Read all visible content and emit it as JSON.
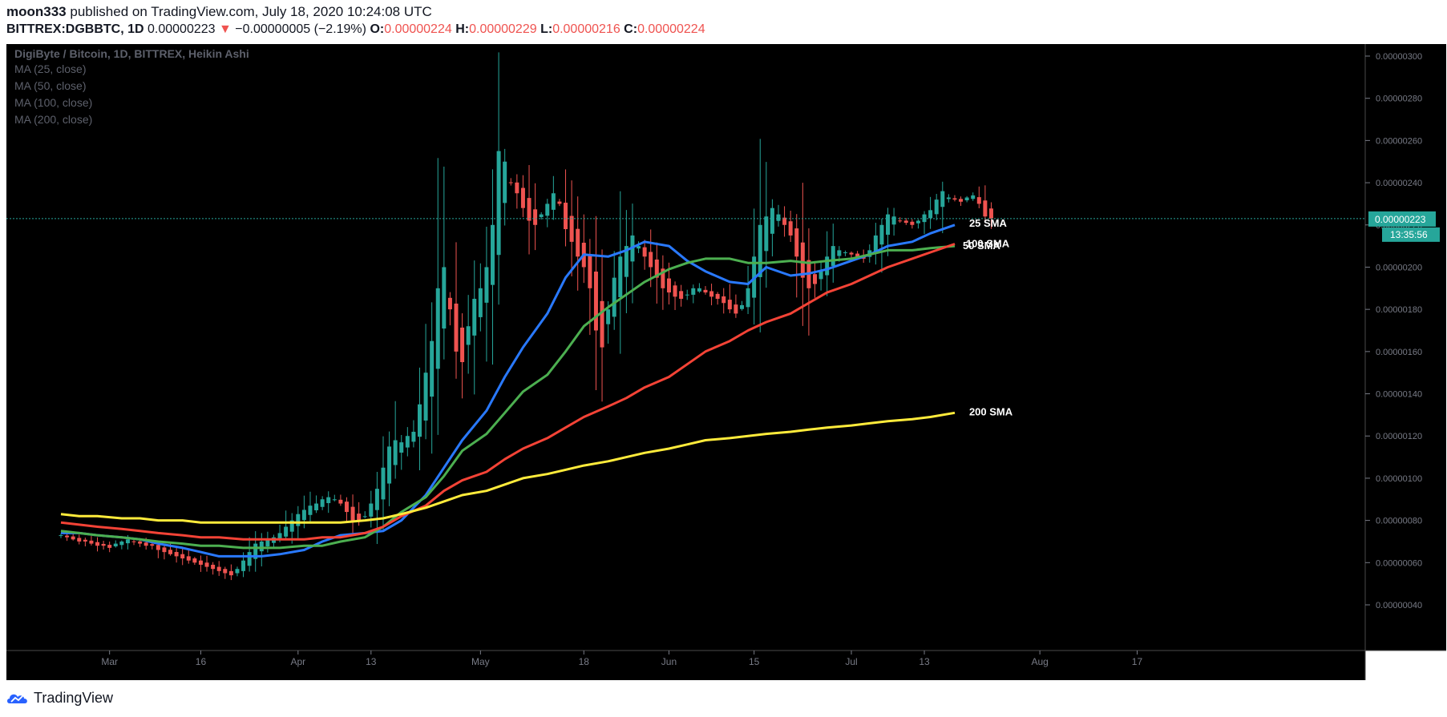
{
  "header": {
    "author": "moon333",
    "published_text": "published on TradingView.com, July 18, 2020 10:24:08 UTC",
    "symbol": "BITTREX:DGBBTC, 1D",
    "last": "0.00000223",
    "change_arrow": "▼",
    "change": "−0.00000005 (−2.19%)",
    "o_label": "O:",
    "o_value": "0.00000224",
    "h_label": "H:",
    "h_value": "0.00000229",
    "l_label": "L:",
    "l_value": "0.00000216",
    "c_label": "C:",
    "c_value": "0.00000224"
  },
  "legend": {
    "title": "DigiByte / Bitcoin, 1D, BITTREX, Heikin Ashi",
    "indicators": [
      "MA (25, close)",
      "MA (50, close)",
      "MA (100, close)",
      "MA (200, close)"
    ]
  },
  "price_badge": {
    "value": "0.00000223",
    "countdown": "13:35:56"
  },
  "footer": {
    "brand": "TradingView"
  },
  "colors": {
    "up": "#26a69a",
    "down": "#ef5350",
    "sma25": "#2979ff",
    "sma50": "#4caf50",
    "sma100": "#f44336",
    "sma200": "#ffeb3b",
    "background": "#000000",
    "badge": "#26a69a"
  },
  "chart_data": {
    "type": "candlestick",
    "subtype": "Heikin Ashi",
    "title": "DigiByte / Bitcoin, 1D, BITTREX, Heikin Ashi",
    "date_range": [
      "2020-02-22",
      "2020-07-18"
    ],
    "y_ticks": [
      "0.00000040",
      "0.00000060",
      "0.00000080",
      "0.00000100",
      "0.00000120",
      "0.00000140",
      "0.00000160",
      "0.00000180",
      "0.00000200",
      "0.00000220",
      "0.00000240",
      "0.00000260",
      "0.00000280",
      "0.00000300"
    ],
    "ylim": [
      4e-07,
      3.04e-06
    ],
    "x_ticks": [
      {
        "date": "2020-03-01",
        "label": "Mar"
      },
      {
        "date": "2020-03-16",
        "label": "16"
      },
      {
        "date": "2020-04-01",
        "label": "Apr"
      },
      {
        "date": "2020-04-13",
        "label": "13"
      },
      {
        "date": "2020-05-01",
        "label": "May"
      },
      {
        "date": "2020-05-18",
        "label": "18"
      },
      {
        "date": "2020-06-01",
        "label": "Jun"
      },
      {
        "date": "2020-06-15",
        "label": "15"
      },
      {
        "date": "2020-07-01",
        "label": "Jul"
      },
      {
        "date": "2020-07-13",
        "label": "13"
      },
      {
        "date": "2020-08-01",
        "label": "Aug"
      },
      {
        "date": "2020-08-17",
        "label": "17"
      }
    ],
    "xlim": [
      "2020-02-22",
      "2020-08-23"
    ],
    "current_price": 2.23e-06,
    "close_series": [
      0.73,
      0.72,
      0.71,
      0.7,
      0.7,
      0.69,
      0.68,
      0.68,
      0.67,
      0.69,
      0.7,
      0.71,
      0.7,
      0.69,
      0.68,
      0.68,
      0.66,
      0.65,
      0.64,
      0.63,
      0.62,
      0.61,
      0.6,
      0.59,
      0.58,
      0.57,
      0.56,
      0.55,
      0.54,
      0.57,
      0.61,
      0.65,
      0.69,
      0.7,
      0.71,
      0.72,
      0.74,
      0.77,
      0.8,
      0.83,
      0.85,
      0.87,
      0.88,
      0.9,
      0.91,
      0.9,
      0.88,
      0.84,
      0.8,
      0.8,
      0.82,
      0.88,
      0.95,
      1.05,
      1.15,
      1.18,
      1.17,
      1.2,
      1.22,
      1.35,
      1.5,
      1.65,
      1.9,
      2.0,
      1.8,
      1.6,
      1.55,
      1.72,
      1.85,
      1.9,
      2.0,
      2.2,
      2.55,
      2.5,
      2.4,
      2.35,
      2.28,
      2.22,
      2.2,
      2.25,
      2.3,
      2.35,
      2.3,
      2.18,
      2.12,
      2.05,
      2.0,
      1.9,
      1.7,
      1.62,
      1.8,
      1.95,
      2.05,
      2.1,
      2.15,
      2.1,
      2.05,
      2.0,
      1.95,
      1.9,
      1.88,
      1.86,
      1.85,
      1.87,
      1.9,
      1.9,
      1.88,
      1.86,
      1.85,
      1.83,
      1.8,
      1.78,
      1.82,
      1.9,
      2.05,
      2.2,
      2.24,
      2.28,
      2.25,
      2.2,
      2.15,
      2.05,
      1.95,
      1.9,
      1.92,
      1.98,
      2.05,
      2.1,
      2.08,
      2.07,
      2.06,
      2.05,
      2.04,
      2.08,
      2.15,
      2.2,
      2.25,
      2.24,
      2.22,
      2.21,
      2.2,
      2.22,
      2.25,
      2.27,
      2.32,
      2.36,
      2.33,
      2.32,
      2.31,
      2.33,
      2.34,
      2.3,
      2.24,
      2.23
    ],
    "close_series_units": "0.000001 BTC",
    "series": [
      {
        "name": "25 SMA",
        "values": [
          0.74,
          0.74,
          0.73,
          0.72,
          0.71,
          0.69,
          0.67,
          0.65,
          0.63,
          0.63,
          0.63,
          0.64,
          0.66,
          0.7,
          0.73,
          0.74,
          0.75,
          0.8,
          0.92,
          1.05,
          1.18,
          1.32,
          1.48,
          1.62,
          1.78,
          1.95,
          2.06,
          2.05,
          2.08,
          2.12,
          2.1,
          2.03,
          1.98,
          1.93,
          1.92,
          2.0,
          1.96,
          1.97,
          1.99,
          2.03,
          2.06,
          2.1,
          2.12,
          2.16,
          2.2
        ]
      },
      {
        "name": "50 SMA",
        "values": [
          0.75,
          0.74,
          0.73,
          0.72,
          0.71,
          0.7,
          0.69,
          0.68,
          0.68,
          0.67,
          0.67,
          0.67,
          0.68,
          0.68,
          0.7,
          0.72,
          0.77,
          0.84,
          0.91,
          1.01,
          1.13,
          1.21,
          1.31,
          1.41,
          1.49,
          1.6,
          1.72,
          1.81,
          1.87,
          1.93,
          1.99,
          2.02,
          2.04,
          2.04,
          2.02,
          2.02,
          2.03,
          2.02,
          2.03,
          2.04,
          2.06,
          2.08,
          2.08,
          2.09,
          2.1
        ]
      },
      {
        "name": "100 SMA",
        "values": [
          0.79,
          0.78,
          0.77,
          0.76,
          0.75,
          0.74,
          0.73,
          0.72,
          0.72,
          0.71,
          0.71,
          0.71,
          0.71,
          0.72,
          0.72,
          0.74,
          0.77,
          0.82,
          0.87,
          0.94,
          0.99,
          1.03,
          1.09,
          1.14,
          1.19,
          1.24,
          1.29,
          1.34,
          1.38,
          1.43,
          1.48,
          1.54,
          1.6,
          1.65,
          1.7,
          1.74,
          1.78,
          1.83,
          1.88,
          1.92,
          1.96,
          2.0,
          2.04,
          2.07,
          2.11
        ]
      },
      {
        "name": "200 SMA",
        "values": [
          0.83,
          0.82,
          0.82,
          0.81,
          0.81,
          0.8,
          0.8,
          0.79,
          0.79,
          0.79,
          0.79,
          0.79,
          0.79,
          0.79,
          0.79,
          0.8,
          0.81,
          0.83,
          0.86,
          0.89,
          0.92,
          0.94,
          0.97,
          1.0,
          1.02,
          1.04,
          1.06,
          1.08,
          1.1,
          1.12,
          1.14,
          1.16,
          1.18,
          1.19,
          1.2,
          1.21,
          1.22,
          1.23,
          1.24,
          1.25,
          1.26,
          1.27,
          1.28,
          1.29,
          1.31
        ]
      }
    ],
    "series_dates": [
      "2020-02-22",
      "2020-07-18"
    ],
    "annotations": [
      "25 SMA",
      "50 SMA",
      "100 SMA",
      "200 SMA"
    ]
  }
}
